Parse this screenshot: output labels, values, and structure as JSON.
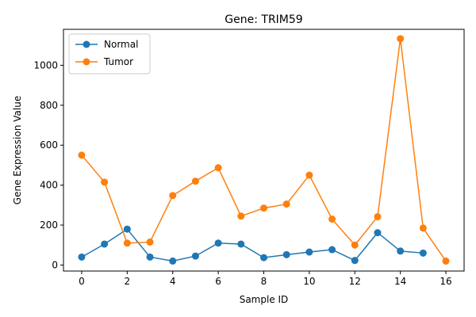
{
  "chart_data": {
    "type": "line",
    "title": "Gene: TRIM59",
    "xlabel": "Sample ID",
    "ylabel": "Gene Expression Value",
    "xlim": [
      -0.8,
      16.8
    ],
    "ylim": [
      -30,
      1180
    ],
    "x_ticks": [
      0,
      2,
      4,
      6,
      8,
      10,
      12,
      14,
      16
    ],
    "y_ticks": [
      0,
      200,
      400,
      600,
      800,
      1000
    ],
    "grid": false,
    "legend_position": "upper-left",
    "series": [
      {
        "name": "Normal",
        "color": "#1f77b4",
        "marker": "circle",
        "x": [
          0,
          1,
          2,
          3,
          4,
          5,
          6,
          7,
          8,
          9,
          10,
          11,
          12,
          13,
          14,
          15
        ],
        "values": [
          40,
          105,
          180,
          40,
          20,
          45,
          110,
          105,
          37,
          52,
          65,
          77,
          23,
          162,
          70,
          60
        ]
      },
      {
        "name": "Tumor",
        "color": "#ff7f0e",
        "marker": "circle",
        "x": [
          0,
          1,
          2,
          3,
          4,
          5,
          6,
          7,
          8,
          9,
          10,
          11,
          12,
          13,
          14,
          15,
          16
        ],
        "values": [
          550,
          415,
          110,
          115,
          348,
          420,
          487,
          245,
          285,
          305,
          450,
          230,
          100,
          242,
          1133,
          185,
          20
        ]
      }
    ]
  }
}
